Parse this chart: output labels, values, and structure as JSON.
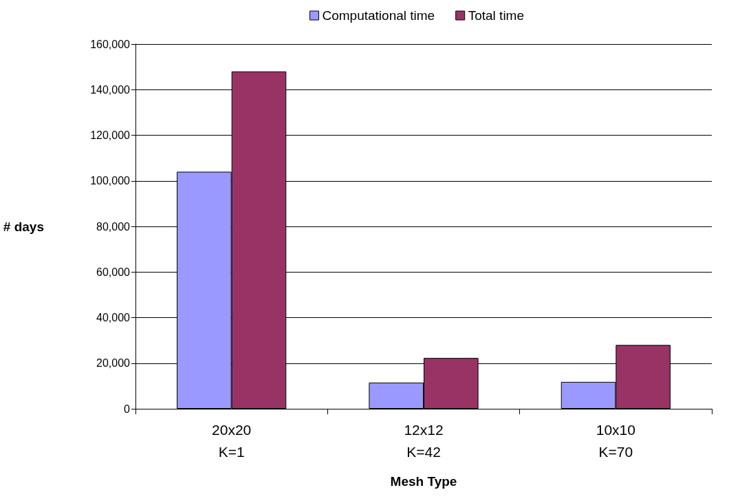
{
  "chart_data": {
    "type": "bar",
    "xlabel": "Mesh Type",
    "ylabel": "# days",
    "categories": [
      "20x20\nK=1",
      "12x12\nK=42",
      "10x10\nK=70"
    ],
    "series": [
      {
        "name": "Computational time",
        "color": "#9999ff",
        "values": [
          104000,
          11500,
          11800
        ]
      },
      {
        "name": "Total time",
        "color": "#993366",
        "values": [
          148000,
          22300,
          28000
        ]
      }
    ],
    "ylim": [
      0,
      160000
    ],
    "yticks": [
      0,
      {
        "value": 20000,
        "label": "20,000"
      },
      {
        "value": 40000,
        "label": "40,000"
      },
      {
        "value": 60000,
        "label": "60,000"
      },
      {
        "value": 80000,
        "label": "80,000"
      },
      {
        "value": 100000,
        "label": "100,000"
      },
      {
        "value": 120000,
        "label": "120,000"
      },
      {
        "value": 140000,
        "label": "140,000"
      },
      {
        "value": 160000,
        "label": "160,000"
      }
    ],
    "grid": "y",
    "legend": "top"
  }
}
